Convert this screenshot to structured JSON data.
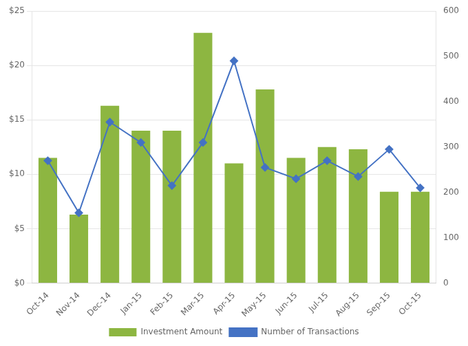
{
  "chart_data": {
    "type": "bar",
    "categories": [
      "Oct-14",
      "Nov-14",
      "Dec-14",
      "Jan-15",
      "Feb-15",
      "Mar-15",
      "Apr-15",
      "May-15",
      "Jun-15",
      "Jul-15",
      "Aug-15",
      "Sep-15",
      "Oct-15"
    ],
    "series": [
      {
        "name": "Investment Amount",
        "type": "bar",
        "color": "#8DB641",
        "values": [
          11.5,
          6.3,
          16.3,
          14.0,
          14.0,
          23.0,
          11.0,
          17.8,
          11.5,
          12.5,
          12.3,
          8.4,
          8.4
        ]
      },
      {
        "name": "Number of Transactions",
        "type": "line",
        "axis": "y2",
        "color": "#4472C4",
        "marker": "diamond",
        "values": [
          270,
          155,
          355,
          310,
          215,
          310,
          490,
          255,
          230,
          270,
          235,
          295,
          210
        ]
      }
    ],
    "ylim": [
      0,
      25
    ],
    "yticks": [
      {
        "value": 0,
        "label": "$0"
      },
      {
        "value": 5,
        "label": "$5"
      },
      {
        "value": 10,
        "label": "$10"
      },
      {
        "value": 15,
        "label": "$15"
      },
      {
        "value": 20,
        "label": "$20"
      },
      {
        "value": 25,
        "label": "$25"
      }
    ],
    "y2lim": [
      0,
      600
    ],
    "y2ticks": [
      0,
      100,
      200,
      300,
      400,
      500,
      600
    ],
    "grid": true,
    "legend": "bottom"
  }
}
